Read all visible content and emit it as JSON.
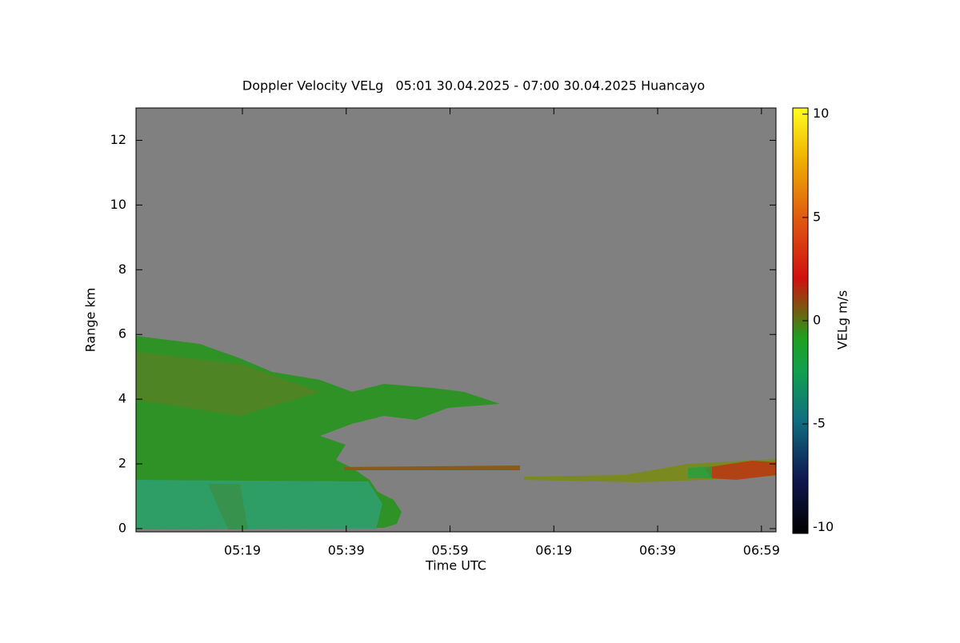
{
  "chart_data": {
    "type": "heatmap",
    "title": "Doppler Velocity VELg   05:01 30.04.2025 - 07:00 30.04.2025 Huancayo",
    "x_label": "Time UTC",
    "y_label": "Range km",
    "colorbar_label": "VELg m/s",
    "xlim": [
      298.5,
      421.8
    ],
    "xticks": [
      {
        "value": 319,
        "label": "05:19"
      },
      {
        "value": 339,
        "label": "05:39"
      },
      {
        "value": 359,
        "label": "05:59"
      },
      {
        "value": 379,
        "label": "06:19"
      },
      {
        "value": 399,
        "label": "06:39"
      },
      {
        "value": 419,
        "label": "06:59"
      }
    ],
    "ylim": [
      -0.1,
      13
    ],
    "yticks": [
      0,
      2,
      4,
      6,
      8,
      10,
      12
    ],
    "clim": [
      -10.3,
      10.3
    ],
    "cticks": [
      10,
      5,
      0,
      -5,
      -10
    ]
  }
}
